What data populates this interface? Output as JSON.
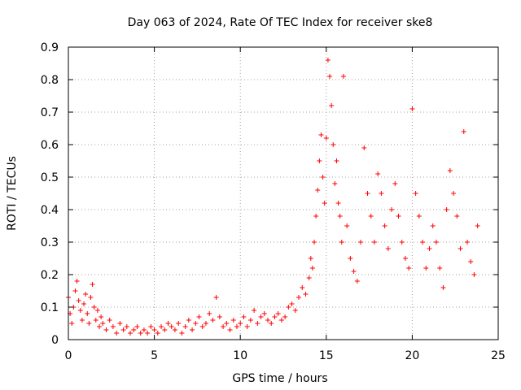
{
  "chart_data": {
    "type": "scatter",
    "title": "Day 063 of 2024, Rate Of TEC Index for receiver ske8",
    "xlabel": "GPS time / hours",
    "ylabel": "ROTI / TECUs",
    "xlim": [
      0,
      25
    ],
    "ylim": [
      0,
      0.9
    ],
    "xticks": [
      0,
      5,
      10,
      15,
      20,
      25
    ],
    "yticks": [
      0,
      0.1,
      0.2,
      0.3,
      0.4,
      0.5,
      0.6,
      0.7,
      0.8,
      0.9
    ],
    "grid": true,
    "marker": "+",
    "color": "#ff0000",
    "series": [
      {
        "x": [
          0.0,
          0.1,
          0.2,
          0.3,
          0.4,
          0.5,
          0.6,
          0.7,
          0.8,
          0.9,
          1.0,
          1.1,
          1.2,
          1.3,
          1.4,
          1.5,
          1.6,
          1.7,
          1.8,
          1.9,
          2.0,
          2.2,
          2.4,
          2.6,
          2.8,
          3.0,
          3.2,
          3.4,
          3.6,
          3.8,
          4.0,
          4.2,
          4.4,
          4.6,
          4.8,
          5.0,
          5.2,
          5.4,
          5.6,
          5.8,
          6.0,
          6.2,
          6.4,
          6.6,
          6.8,
          7.0,
          7.2,
          7.4,
          7.6,
          7.8,
          8.0,
          8.2,
          8.4,
          8.6,
          8.8,
          9.0,
          9.2,
          9.4,
          9.6,
          9.8,
          10.0,
          10.2,
          10.4,
          10.6,
          10.8,
          11.0,
          11.2,
          11.4,
          11.6,
          11.8,
          12.0,
          12.2,
          12.4,
          12.6,
          12.8,
          13.0,
          13.2,
          13.4,
          13.6,
          13.8,
          14.0,
          14.1,
          14.2,
          14.3,
          14.4,
          14.5,
          14.6,
          14.7,
          14.8,
          14.9,
          15.0,
          15.1,
          15.2,
          15.3,
          15.4,
          15.5,
          15.6,
          15.7,
          15.8,
          15.9,
          16.0,
          16.2,
          16.4,
          16.6,
          16.8,
          17.0,
          17.2,
          17.4,
          17.6,
          17.8,
          18.0,
          18.2,
          18.4,
          18.6,
          18.8,
          19.0,
          19.2,
          19.4,
          19.6,
          19.8,
          20.0,
          20.2,
          20.4,
          20.6,
          20.8,
          21.0,
          21.2,
          21.4,
          21.6,
          21.8,
          22.0,
          22.2,
          22.4,
          22.6,
          22.8,
          23.0,
          23.2,
          23.4,
          23.6,
          23.8
        ],
        "y": [
          0.13,
          0.08,
          0.05,
          0.1,
          0.15,
          0.18,
          0.12,
          0.09,
          0.06,
          0.11,
          0.14,
          0.08,
          0.05,
          0.13,
          0.17,
          0.1,
          0.06,
          0.09,
          0.04,
          0.07,
          0.05,
          0.03,
          0.06,
          0.04,
          0.02,
          0.05,
          0.03,
          0.04,
          0.02,
          0.03,
          0.04,
          0.02,
          0.03,
          0.02,
          0.04,
          0.03,
          0.02,
          0.04,
          0.03,
          0.05,
          0.04,
          0.03,
          0.05,
          0.02,
          0.04,
          0.06,
          0.03,
          0.05,
          0.07,
          0.04,
          0.05,
          0.08,
          0.06,
          0.13,
          0.07,
          0.04,
          0.05,
          0.03,
          0.06,
          0.04,
          0.05,
          0.07,
          0.04,
          0.06,
          0.09,
          0.05,
          0.07,
          0.08,
          0.06,
          0.05,
          0.07,
          0.08,
          0.06,
          0.07,
          0.1,
          0.11,
          0.09,
          0.13,
          0.16,
          0.14,
          0.19,
          0.25,
          0.22,
          0.3,
          0.38,
          0.46,
          0.55,
          0.63,
          0.5,
          0.42,
          0.62,
          0.86,
          0.81,
          0.72,
          0.6,
          0.48,
          0.55,
          0.42,
          0.38,
          0.3,
          0.81,
          0.35,
          0.25,
          0.21,
          0.18,
          0.3,
          0.59,
          0.45,
          0.38,
          0.3,
          0.51,
          0.45,
          0.35,
          0.28,
          0.4,
          0.48,
          0.38,
          0.3,
          0.25,
          0.22,
          0.71,
          0.45,
          0.38,
          0.3,
          0.22,
          0.28,
          0.35,
          0.3,
          0.22,
          0.16,
          0.4,
          0.52,
          0.45,
          0.38,
          0.28,
          0.64,
          0.3,
          0.24,
          0.2,
          0.35
        ]
      }
    ]
  }
}
